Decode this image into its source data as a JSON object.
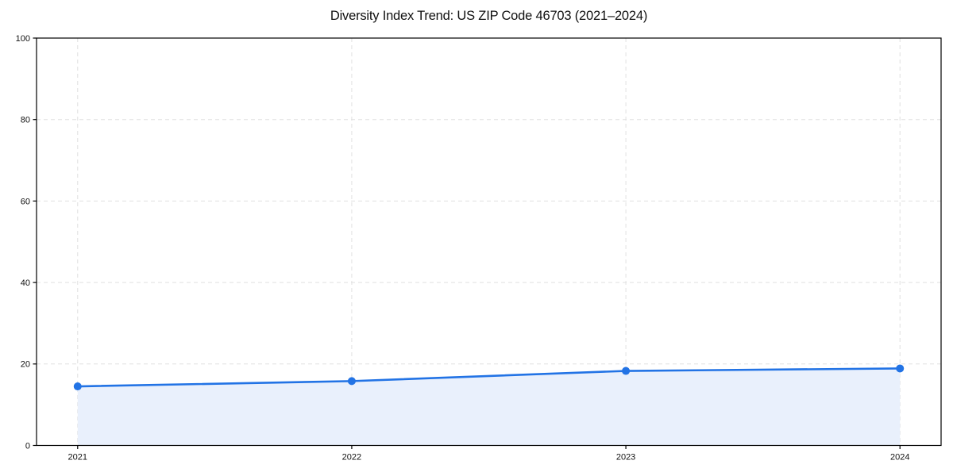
{
  "figure": {
    "background_color": "#ffffff"
  },
  "chart_data": {
    "type": "line",
    "title": "Diversity Index Trend: US ZIP Code 46703 (2021–2024)",
    "xlabel": "",
    "ylabel": "",
    "x": [
      2021,
      2022,
      2023,
      2024
    ],
    "x_tick_labels": [
      "2021",
      "2022",
      "2023",
      "2024"
    ],
    "series": [
      {
        "name": "Diversity Index",
        "values": [
          14.5,
          15.8,
          18.3,
          18.9
        ]
      }
    ],
    "xlim": [
      2020.85,
      2024.15
    ],
    "ylim": [
      0,
      100
    ],
    "y_ticks": [
      0,
      20,
      40,
      60,
      80,
      100
    ],
    "y_tick_labels": [
      "0",
      "20",
      "40",
      "60",
      "80",
      "100"
    ],
    "grid": true,
    "grid_style": "dashed",
    "legend_position": "none",
    "area_fill": true,
    "colors": {
      "line": "#2273e5",
      "marker": "#2273e5",
      "area_fill": "#e9f0fc",
      "grid": "#e0e0e0",
      "spine": "#000000",
      "tick_label": "#111111",
      "title": "#111111"
    }
  }
}
